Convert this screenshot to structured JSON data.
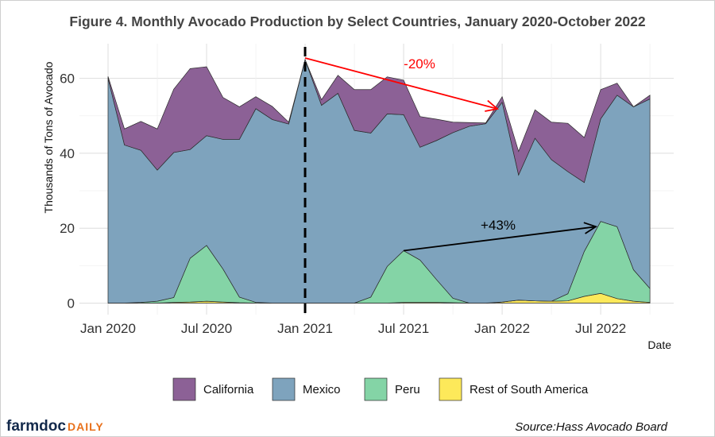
{
  "chart_data": {
    "type": "area",
    "stacked": true,
    "title": "Figure 4. Monthly Avocado Production by Select Countries, January 2020-October 2022",
    "xlabel": "Date",
    "ylabel": "Thousands of Tons of Avocado",
    "ylim": [
      0,
      68
    ],
    "yticks": [
      0,
      20,
      40,
      60
    ],
    "xtick_labels": [
      "Jan 2020",
      "Jul 2020",
      "Jan 2021",
      "Jul 2021",
      "Jan 2022",
      "Jul 2022"
    ],
    "x": [
      "2020-01",
      "2020-02",
      "2020-03",
      "2020-04",
      "2020-05",
      "2020-06",
      "2020-07",
      "2020-08",
      "2020-09",
      "2020-10",
      "2020-11",
      "2020-12",
      "2021-01",
      "2021-02",
      "2021-03",
      "2021-04",
      "2021-05",
      "2021-06",
      "2021-07",
      "2021-08",
      "2021-09",
      "2021-10",
      "2021-11",
      "2021-12",
      "2022-01",
      "2022-02",
      "2022-03",
      "2022-04",
      "2022-05",
      "2022-06",
      "2022-07",
      "2022-08",
      "2022-09",
      "2022-10"
    ],
    "grid": true,
    "legend_position": "bottom",
    "series": [
      {
        "name": "Rest of South America",
        "color": "#fde95a",
        "values": [
          0,
          0,
          0,
          0,
          0.2,
          0.3,
          0.5,
          0.3,
          0.1,
          0,
          0,
          0,
          0,
          0,
          0,
          0,
          0,
          0,
          0.2,
          0.2,
          0.2,
          0.1,
          0,
          0,
          0.3,
          0.8,
          0.6,
          0.5,
          0.6,
          1.8,
          2.6,
          1.2,
          0.5,
          0.2
        ]
      },
      {
        "name": "Peru",
        "color": "#84d4a6",
        "values": [
          0,
          0,
          0.2,
          0.5,
          1.3,
          11.7,
          14.9,
          8.8,
          1.5,
          0.2,
          0,
          0,
          0,
          0,
          0,
          0,
          1.6,
          9.8,
          13.8,
          11.3,
          6.1,
          1.2,
          0,
          0,
          0,
          0,
          0,
          0,
          1.9,
          12.0,
          19.2,
          19.2,
          8.4,
          3.7
        ]
      },
      {
        "name": "Mexico",
        "color": "#7ea3bd",
        "values": [
          60,
          42.2,
          40.6,
          35.0,
          38.7,
          29.0,
          29.3,
          34.6,
          42.1,
          51.7,
          49,
          47.8,
          65,
          52.8,
          56,
          46.1,
          43.8,
          40.7,
          36.3,
          30.1,
          37.1,
          44.2,
          47.2,
          47.9,
          53.3,
          33.4,
          43.4,
          37.8,
          32.6,
          18.4,
          27.4,
          35.1,
          43.5,
          50.6
        ]
      },
      {
        "name": "California",
        "color": "#8c6196",
        "values": [
          0.5,
          4.3,
          7.7,
          11,
          16.9,
          21.6,
          18.4,
          11.2,
          8.7,
          3.2,
          3.5,
          0.5,
          0,
          1.5,
          4.8,
          10.9,
          11.6,
          9.9,
          9.2,
          8.2,
          5.7,
          2.8,
          1,
          0.2,
          1.5,
          6.3,
          7.6,
          10,
          12.9,
          12,
          7.8,
          3.2,
          0,
          1
        ]
      }
    ],
    "annotations": [
      {
        "text": "-20%",
        "color": "#ff0000"
      },
      {
        "text": "+43%",
        "color": "#000000"
      }
    ],
    "reference_line": {
      "x": "2021-01",
      "style": "dashed",
      "color": "#000000"
    }
  },
  "branding": {
    "main": "farmdoc",
    "sub": "DAILY"
  },
  "source": "Source:Hass Avocado Board"
}
